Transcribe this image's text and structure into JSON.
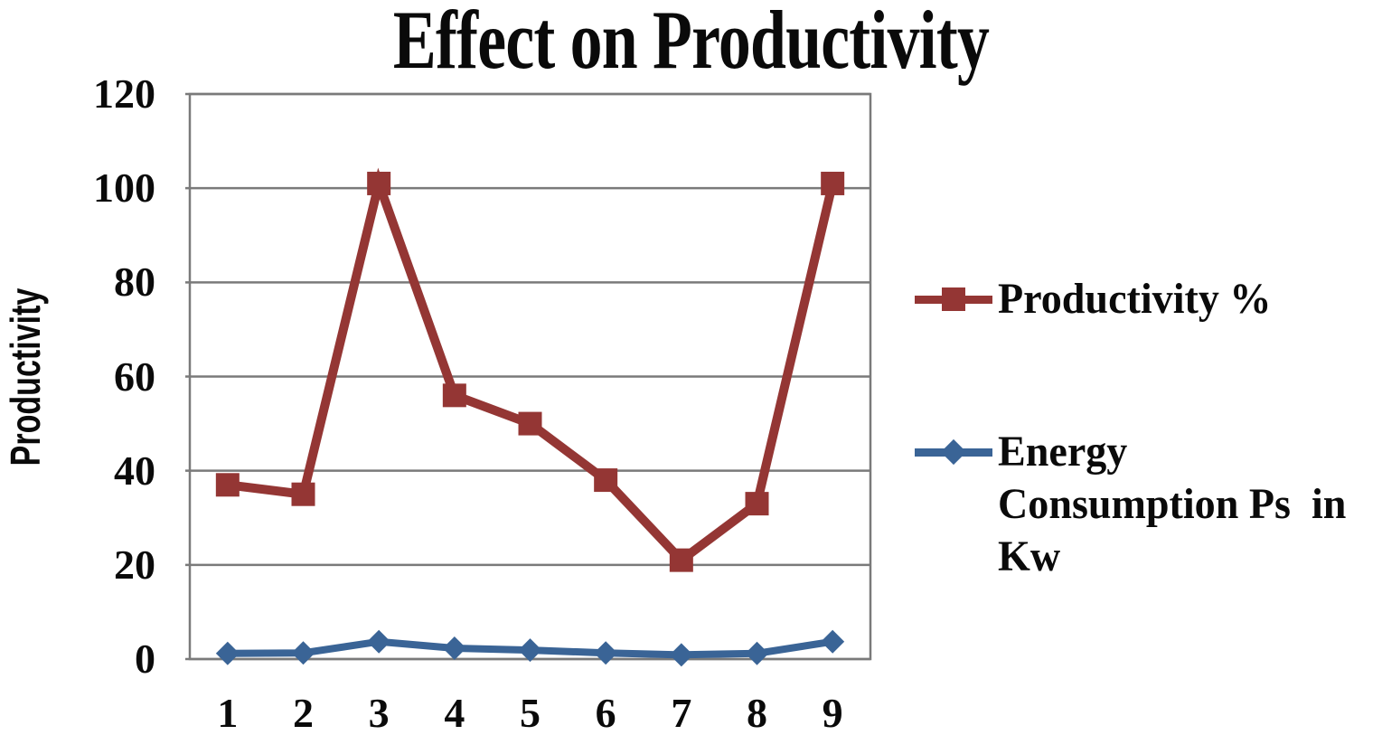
{
  "chart_data": {
    "type": "line",
    "title": "Effect on Productivity",
    "xlabel": "",
    "ylabel": "Productivity",
    "categories": [
      "1",
      "2",
      "3",
      "4",
      "5",
      "6",
      "7",
      "8",
      "9"
    ],
    "series": [
      {
        "name": "Productivity %",
        "color": "#943634",
        "marker": "square",
        "line_width": 10,
        "values": [
          37,
          35,
          101,
          56,
          50,
          38,
          21,
          33,
          101
        ]
      },
      {
        "name": "Energy Consumption Ps in Kw",
        "color": "#3A6496",
        "marker": "diamond",
        "line_width": 8,
        "values": [
          1.2,
          1.3,
          3.7,
          2.3,
          1.9,
          1.3,
          0.9,
          1.2,
          3.7
        ]
      }
    ],
    "ylim": [
      0,
      120
    ],
    "yticks": [
      0,
      20,
      40,
      60,
      80,
      100,
      120
    ],
    "grid": true,
    "gridline_color": "#7a7a7a",
    "plot_border_color": "#7a7a7a",
    "background": "#ffffff",
    "legend_position": "right"
  },
  "legend": {
    "entries": [
      {
        "label": "Productivity %"
      },
      {
        "label": "Energy\nConsumption Ps  in\nKw"
      }
    ]
  }
}
